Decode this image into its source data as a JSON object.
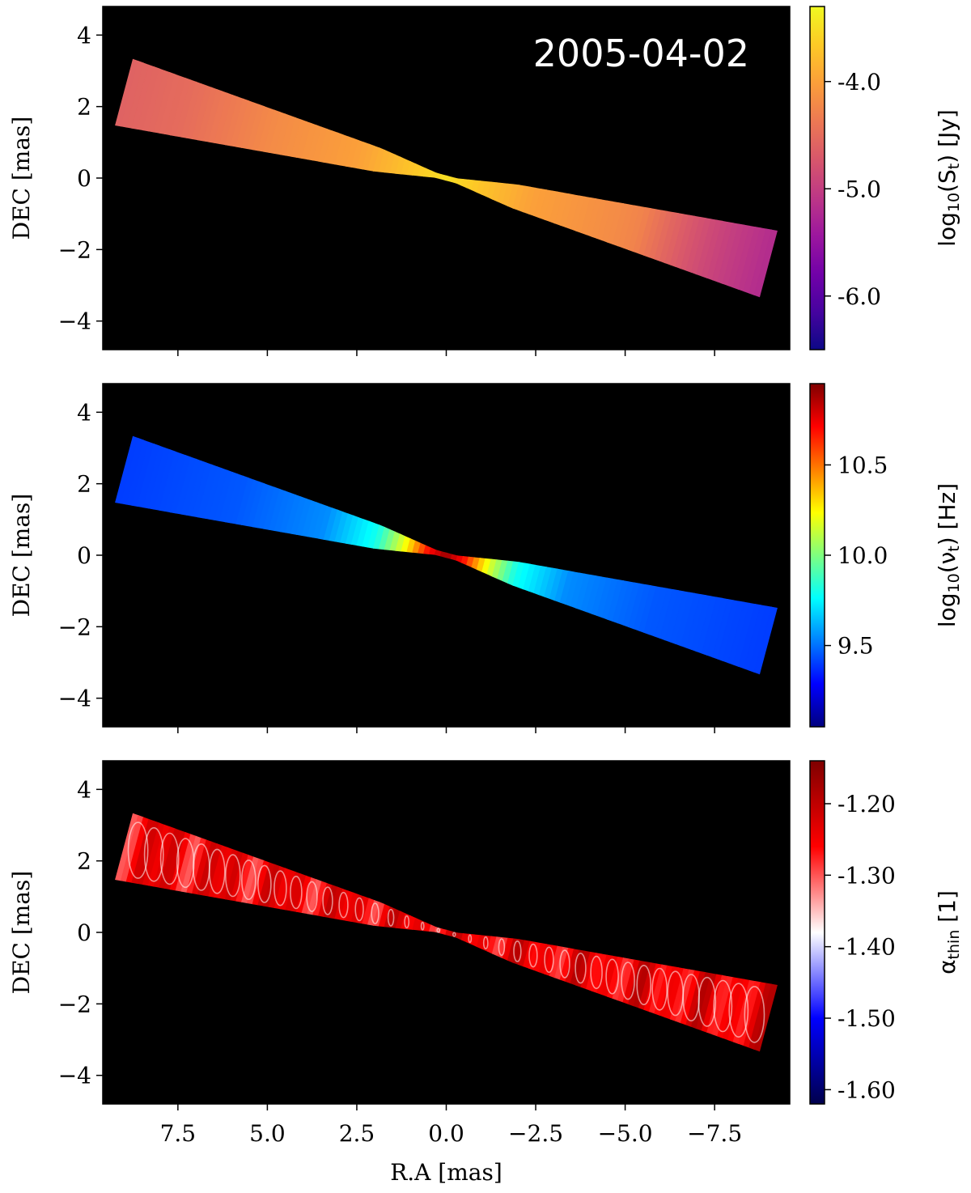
{
  "chart_data": [
    {
      "type": "heatmap",
      "title": "",
      "annotation": "2005-04-02",
      "xlabel": "",
      "ylabel": "DEC [mas]",
      "xlim": [
        9.6,
        -9.6
      ],
      "ylim": [
        -4.8,
        4.8
      ],
      "x_ticks": [
        7.5,
        5.0,
        2.5,
        0.0,
        -2.5,
        -5.0,
        -7.5
      ],
      "x_tick_labels_shown": false,
      "y_ticks": [
        4,
        2,
        0,
        -2,
        -4
      ],
      "y_tick_labels": [
        "4",
        "2",
        "0",
        "−2",
        "−4"
      ],
      "background": "#000000",
      "colorbar": {
        "label_base": "log",
        "label_sub": "10",
        "label_rest": "(S",
        "label_sub2": "t",
        "label_end": ") [Jy]",
        "colormap": "plasma",
        "range": [
          -6.5,
          -3.3
        ],
        "ticks": [
          -4.0,
          -5.0,
          -6.0
        ],
        "tick_labels": [
          "-4.0",
          "-5.0",
          "-6.0"
        ]
      },
      "jet": {
        "axis_points": [
          [
            9.0,
            2.4
          ],
          [
            0.0,
            0.0
          ],
          [
            -9.0,
            -2.4
          ]
        ],
        "profile": [
          {
            "r": 0.0,
            "value": -3.5
          },
          {
            "r": 1.0,
            "value": -3.7
          },
          {
            "r": 2.5,
            "value": -4.0
          },
          {
            "r": 5.0,
            "value": -4.2
          },
          {
            "r": 7.5,
            "value": -4.5
          },
          {
            "r": 9.3,
            "value": -4.6
          }
        ],
        "far_end_value": -5.2
      }
    },
    {
      "type": "heatmap",
      "title": "",
      "xlabel": "",
      "ylabel": "DEC [mas]",
      "xlim": [
        9.6,
        -9.6
      ],
      "ylim": [
        -4.8,
        4.8
      ],
      "x_ticks": [
        7.5,
        5.0,
        2.5,
        0.0,
        -2.5,
        -5.0,
        -7.5
      ],
      "x_tick_labels_shown": false,
      "y_ticks": [
        4,
        2,
        0,
        -2,
        -4
      ],
      "y_tick_labels": [
        "4",
        "2",
        "0",
        "−2",
        "−4"
      ],
      "background": "#000000",
      "colorbar": {
        "label_base": "log",
        "label_sub": "10",
        "label_rest": "(ν",
        "label_sub2": "t",
        "label_end": ") [Hz]",
        "colormap": "jet",
        "range": [
          9.05,
          10.95
        ],
        "ticks": [
          10.5,
          10.0,
          9.5
        ],
        "tick_labels": [
          "10.5",
          "10.0",
          "9.5"
        ]
      },
      "jet": {
        "axis_points": [
          [
            9.0,
            2.4
          ],
          [
            0.0,
            0.0
          ],
          [
            -9.0,
            -2.4
          ]
        ],
        "profile": [
          {
            "r": 0.0,
            "value": 10.9
          },
          {
            "r": 0.5,
            "value": 10.7
          },
          {
            "r": 1.2,
            "value": 10.2
          },
          {
            "r": 2.0,
            "value": 9.8
          },
          {
            "r": 3.5,
            "value": 9.55
          },
          {
            "r": 6.0,
            "value": 9.45
          },
          {
            "r": 9.3,
            "value": 9.4
          }
        ]
      }
    },
    {
      "type": "heatmap",
      "title": "",
      "xlabel": "R.A [mas]",
      "ylabel": "DEC [mas]",
      "xlim": [
        9.6,
        -9.6
      ],
      "ylim": [
        -4.8,
        4.8
      ],
      "x_ticks": [
        7.5,
        5.0,
        2.5,
        0.0,
        -2.5,
        -5.0,
        -7.5
      ],
      "x_tick_labels": [
        "7.5",
        "5.0",
        "2.5",
        "0.0",
        "−2.5",
        "−5.0",
        "−7.5"
      ],
      "x_tick_labels_shown": true,
      "y_ticks": [
        4,
        2,
        0,
        -2,
        -4
      ],
      "y_tick_labels": [
        "4",
        "2",
        "0",
        "−2",
        "−4"
      ],
      "background": "#000000",
      "colorbar": {
        "label_base": "α",
        "label_sub": "thin",
        "label_rest": "",
        "label_sub2": "",
        "label_end": " [1]",
        "colormap": "seismic",
        "range": [
          -1.62,
          -1.14
        ],
        "ticks": [
          -1.2,
          -1.3,
          -1.4,
          -1.5,
          -1.6
        ],
        "tick_labels": [
          "-1.20",
          "-1.30",
          "-1.40",
          "-1.50",
          "-1.60"
        ]
      },
      "jet": {
        "axis_points": [
          [
            9.0,
            2.4
          ],
          [
            0.0,
            0.0
          ],
          [
            -9.0,
            -2.4
          ]
        ],
        "profile": [
          {
            "r": 0.0,
            "value": -1.3
          },
          {
            "r": 9.3,
            "value": -1.27
          }
        ]
      }
    }
  ]
}
